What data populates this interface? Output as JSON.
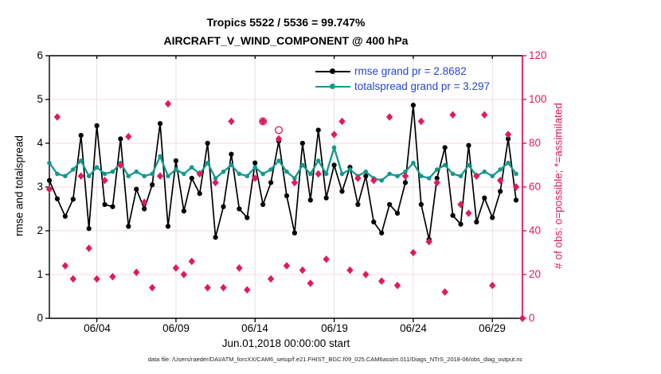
{
  "colors": {
    "rmse_line": "#000000",
    "totalspread_line": "#12998C",
    "obs_pink": "#E11A60",
    "legend_text_blue": "#2646D4",
    "grid_h": "#F6D9E4",
    "grid_v": "#E7E0E2"
  },
  "chart_data": {
    "type": "line",
    "title": "Tropics 5522 / 5536 = 99.747%",
    "subtitle": "AIRCRAFT_V_WIND_COMPONENT @ 400 hPa",
    "xlabel": "Jun.01,2018 00:00:00 start",
    "ylabel_left": "rmse and totalspread",
    "ylabel_right": "# of obs: o=possible; *=assimilated",
    "grid": "on",
    "legend_position": "top-right-inside",
    "ylim_left": [
      0,
      6
    ],
    "yticks_left": [
      "0",
      "1",
      "2",
      "3",
      "4",
      "5",
      "6"
    ],
    "ylim_right": [
      0,
      120
    ],
    "yticks_right": [
      "0",
      "20",
      "40",
      "60",
      "80",
      "100",
      "120"
    ],
    "xlim_days": [
      1,
      30.9
    ],
    "xticks": [
      {
        "day": 4,
        "label": "06/04"
      },
      {
        "day": 9,
        "label": "06/09"
      },
      {
        "day": 14,
        "label": "06/14"
      },
      {
        "day": 19,
        "label": "06/19"
      },
      {
        "day": 24,
        "label": "06/24"
      },
      {
        "day": 29,
        "label": "06/29"
      }
    ],
    "x_days": [
      1,
      1.5,
      2,
      2.5,
      3,
      3.5,
      4,
      4.5,
      5,
      5.5,
      6,
      6.5,
      7,
      7.5,
      8,
      8.5,
      9,
      9.5,
      10,
      10.5,
      11,
      11.5,
      12,
      12.5,
      13,
      13.5,
      14,
      14.5,
      15,
      15.5,
      16,
      16.5,
      17,
      17.5,
      18,
      18.5,
      19,
      19.5,
      20,
      20.5,
      21,
      21.5,
      22,
      22.5,
      23,
      23.5,
      24,
      24.5,
      25,
      25.5,
      26,
      26.5,
      27,
      27.5,
      28,
      28.5,
      29,
      29.5,
      30,
      30.5
    ],
    "series": [
      {
        "name": "rmse grand pr = 2.8682",
        "color": "#000000",
        "marker": "filled-circle",
        "axis": "left",
        "values": [
          3.15,
          2.73,
          2.33,
          2.72,
          4.18,
          2.05,
          4.4,
          2.6,
          2.55,
          4.1,
          2.1,
          2.95,
          2.5,
          3.05,
          4.45,
          2.1,
          3.6,
          2.45,
          3.2,
          2.85,
          4.0,
          1.85,
          2.55,
          3.75,
          2.5,
          2.3,
          3.55,
          2.6,
          3.1,
          4.05,
          2.8,
          1.95,
          4.0,
          2.7,
          4.3,
          2.75,
          3.5,
          2.9,
          3.45,
          2.6,
          3.25,
          2.2,
          1.95,
          2.6,
          2.4,
          3.1,
          4.87,
          2.6,
          1.8,
          3.2,
          3.9,
          2.35,
          2.15,
          3.95,
          2.2,
          2.75,
          2.3,
          2.9,
          4.1,
          2.7
        ]
      },
      {
        "name": "totalspread grand pr = 3.297",
        "color": "#12998C",
        "marker": "filled-circle",
        "axis": "left",
        "values": [
          3.55,
          3.3,
          3.25,
          3.4,
          3.6,
          3.25,
          3.45,
          3.3,
          3.35,
          3.55,
          3.25,
          3.35,
          3.25,
          3.3,
          3.7,
          3.25,
          3.4,
          3.3,
          3.45,
          3.3,
          3.55,
          3.2,
          3.35,
          3.5,
          3.3,
          3.25,
          3.45,
          3.3,
          3.4,
          3.6,
          3.35,
          3.2,
          3.5,
          3.3,
          3.6,
          3.3,
          3.9,
          3.3,
          3.4,
          3.25,
          3.35,
          3.2,
          3.15,
          3.3,
          3.25,
          3.35,
          3.55,
          3.25,
          3.2,
          3.4,
          3.5,
          3.3,
          3.25,
          3.5,
          3.25,
          3.35,
          3.25,
          3.4,
          3.55,
          3.3
        ]
      }
    ],
    "obs_series": {
      "name": "# of obs",
      "axis": "right",
      "color": "#E11A60",
      "marker_assimilated": "asterisk-diamond",
      "marker_possible": "open-circle",
      "points": [
        {
          "d": 1.0,
          "n": 59
        },
        {
          "d": 1.5,
          "n": 92
        },
        {
          "d": 2.0,
          "n": 24
        },
        {
          "d": 2.5,
          "n": 18
        },
        {
          "d": 3.0,
          "n": 65
        },
        {
          "d": 3.5,
          "n": 32
        },
        {
          "d": 4.0,
          "n": 18
        },
        {
          "d": 4.5,
          "n": 63
        },
        {
          "d": 5.0,
          "n": 19
        },
        {
          "d": 5.5,
          "n": 70
        },
        {
          "d": 6.0,
          "n": 83
        },
        {
          "d": 6.5,
          "n": 21
        },
        {
          "d": 7.0,
          "n": 53
        },
        {
          "d": 7.5,
          "n": 14
        },
        {
          "d": 8.0,
          "n": 65
        },
        {
          "d": 8.5,
          "n": 98
        },
        {
          "d": 9.0,
          "n": 23
        },
        {
          "d": 9.5,
          "n": 20
        },
        {
          "d": 10.0,
          "n": 26
        },
        {
          "d": 10.5,
          "n": 66
        },
        {
          "d": 11.0,
          "n": 14
        },
        {
          "d": 11.5,
          "n": 62
        },
        {
          "d": 12.0,
          "n": 14
        },
        {
          "d": 12.5,
          "n": 90
        },
        {
          "d": 13.0,
          "n": 23
        },
        {
          "d": 13.5,
          "n": 13
        },
        {
          "d": 14.0,
          "n": 64
        },
        {
          "d": 14.5,
          "n": 90,
          "ring": true
        },
        {
          "d": 15.0,
          "n": 18
        },
        {
          "d": 15.5,
          "n": 82,
          "p": 86
        },
        {
          "d": 16.0,
          "n": 24
        },
        {
          "d": 16.5,
          "n": 62
        },
        {
          "d": 17.0,
          "n": 22
        },
        {
          "d": 17.5,
          "n": 16
        },
        {
          "d": 18.0,
          "n": 66
        },
        {
          "d": 18.5,
          "n": 27
        },
        {
          "d": 19.0,
          "n": 84
        },
        {
          "d": 19.5,
          "n": 90
        },
        {
          "d": 20.0,
          "n": 22
        },
        {
          "d": 20.5,
          "n": 64
        },
        {
          "d": 21.0,
          "n": 20
        },
        {
          "d": 21.5,
          "n": 63
        },
        {
          "d": 22.0,
          "n": 17
        },
        {
          "d": 22.5,
          "n": 92
        },
        {
          "d": 23.0,
          "n": 15
        },
        {
          "d": 23.5,
          "n": 65
        },
        {
          "d": 24.0,
          "n": 30
        },
        {
          "d": 24.5,
          "n": 90
        },
        {
          "d": 25.0,
          "n": 35
        },
        {
          "d": 25.5,
          "n": 62
        },
        {
          "d": 26.0,
          "n": 12
        },
        {
          "d": 26.5,
          "n": 93
        },
        {
          "d": 27.0,
          "n": 52
        },
        {
          "d": 27.5,
          "n": 48
        },
        {
          "d": 28.0,
          "n": 65
        },
        {
          "d": 28.5,
          "n": 93
        },
        {
          "d": 29.0,
          "n": 15
        },
        {
          "d": 29.5,
          "n": 63
        },
        {
          "d": 30.0,
          "n": 84
        },
        {
          "d": 30.5,
          "n": 60
        },
        {
          "d": 30.9,
          "n": 0
        }
      ]
    }
  },
  "footer": {
    "data_file": "data file: /Users/raeder/DAI/ATM_forcXX/CAM6_setup/f.e21.FHIST_BGC.f09_025.CAM6assim.011/Diags_NTrS_2018-06/obs_diag_output.nc"
  }
}
